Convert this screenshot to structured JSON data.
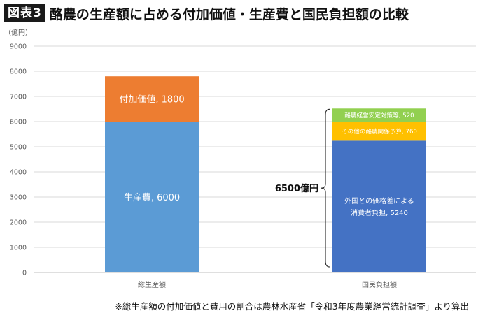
{
  "title": {
    "badge": "図表3",
    "text": "酪農の生産額に占める付加価値・生産費と国民負担額の比較"
  },
  "unit_label": "（億円）",
  "footnote": "※総生産額の付加価値と費用の割合は農林水産省「令和3年度農業経営統計調査」より算出",
  "colors": {
    "value_added": "#ED7D31",
    "production_cost": "#5B9BD5",
    "consumer_burden": "#4472C4",
    "dairy_other_budget": "#FFC000",
    "dairy_stabilization": "#92D050",
    "grid": "#D9D9D9",
    "axis": "#BFBFBF"
  },
  "chart_data": {
    "type": "bar",
    "stacked": true,
    "categories": [
      "総生産額",
      "国民負担額"
    ],
    "ylim": [
      0,
      9000
    ],
    "yticks": [
      0,
      1000,
      2000,
      3000,
      4000,
      5000,
      6000,
      7000,
      8000,
      9000
    ],
    "ytick_labels": [
      "0",
      "1000",
      "2000",
      "3000",
      "4000",
      "5000",
      "6000",
      "7000",
      "8000",
      "9000"
    ],
    "grid": true,
    "legend": "none",
    "series": [
      {
        "name": "生産費",
        "category": "総生産額",
        "value": 6000,
        "label": "生産費, 6000",
        "color_key": "production_cost"
      },
      {
        "name": "付加価値",
        "category": "総生産額",
        "value": 1800,
        "label": "付加価値, 1800",
        "color_key": "value_added"
      },
      {
        "name": "外国との価格差による消費者負担",
        "category": "国民負担額",
        "value": 5240,
        "label_lines": [
          "外国との価格差による",
          "消費者負担, 5240"
        ],
        "color_key": "consumer_burden"
      },
      {
        "name": "その他の酪農関係予算",
        "category": "国民負担額",
        "value": 760,
        "label": "その他の酪農関係予算, 760",
        "color_key": "dairy_other_budget"
      },
      {
        "name": "酪農経営安定対策等",
        "category": "国民負担額",
        "value": 520,
        "label": "酪農経営安定対策等, 520",
        "color_key": "dairy_stabilization"
      }
    ],
    "annotations": [
      {
        "text": "6500億円",
        "type": "brace",
        "category": "国民負担額",
        "from": 0,
        "to": 6520
      }
    ]
  }
}
